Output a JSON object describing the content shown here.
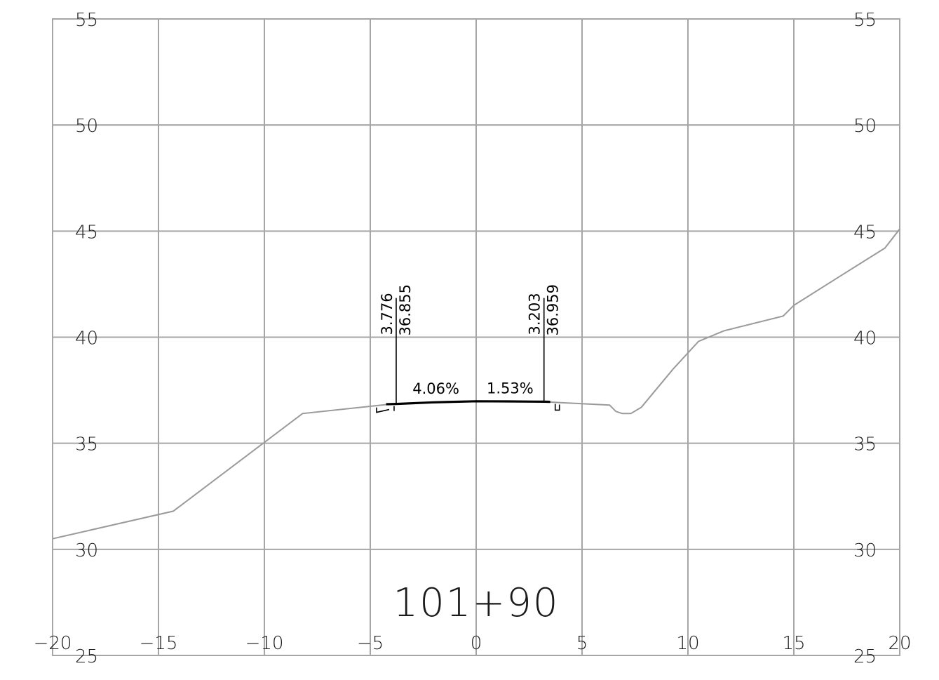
{
  "station_label": "101+90",
  "x_tick_labels": [
    "−20",
    "−15",
    "−10",
    "−5",
    "0",
    "5",
    "10",
    "15",
    "20"
  ],
  "y_tick_labels_left": [
    "55",
    "50",
    "45",
    "40",
    "35",
    "30",
    "25"
  ],
  "y_tick_labels_right": [
    "55",
    "50",
    "45",
    "40",
    "35",
    "30",
    "25"
  ],
  "axes": {
    "x_range": [
      -20,
      20
    ],
    "y_range": [
      25,
      55
    ],
    "x_step": 5,
    "y_step": 5,
    "grid": true
  },
  "colors": {
    "grid": "#a6a6a6",
    "ground": "#9a9a9a",
    "road": "#000000"
  },
  "ground_profile": [
    [
      -20,
      30.5
    ],
    [
      -14.3,
      31.8
    ],
    [
      -8.2,
      36.4
    ],
    [
      -4.0,
      36.85
    ],
    [
      -3.776,
      36.855
    ],
    [
      0,
      36.98
    ],
    [
      3.203,
      36.959
    ],
    [
      3.9,
      36.92
    ],
    [
      6.3,
      36.8
    ],
    [
      6.6,
      36.5
    ],
    [
      6.9,
      36.4
    ],
    [
      7.3,
      36.4
    ],
    [
      7.8,
      36.7
    ],
    [
      9.3,
      38.5
    ],
    [
      10.5,
      39.8
    ],
    [
      11.7,
      40.3
    ],
    [
      14.5,
      41.0
    ],
    [
      15.0,
      41.5
    ],
    [
      17.3,
      42.95
    ],
    [
      19.3,
      44.2
    ],
    [
      20,
      45.1
    ]
  ],
  "road_profile": [
    [
      -4.25,
      36.84
    ],
    [
      -3.776,
      36.855
    ],
    [
      -2.0,
      36.93
    ],
    [
      0,
      36.98
    ],
    [
      1.5,
      36.975
    ],
    [
      3.203,
      36.959
    ],
    [
      3.5,
      36.955
    ]
  ],
  "left_edge": {
    "offset": "3.776",
    "elevation": "36.855",
    "x": -3.776,
    "y": 36.855
  },
  "right_edge": {
    "offset": "3.203",
    "elevation": "36.959",
    "x": 3.203,
    "y": 36.959
  },
  "slopes": [
    {
      "label": "4.06%",
      "x": -1.9,
      "y": 37.33
    },
    {
      "label": "1.53%",
      "x": 1.6,
      "y": 37.35
    }
  ]
}
